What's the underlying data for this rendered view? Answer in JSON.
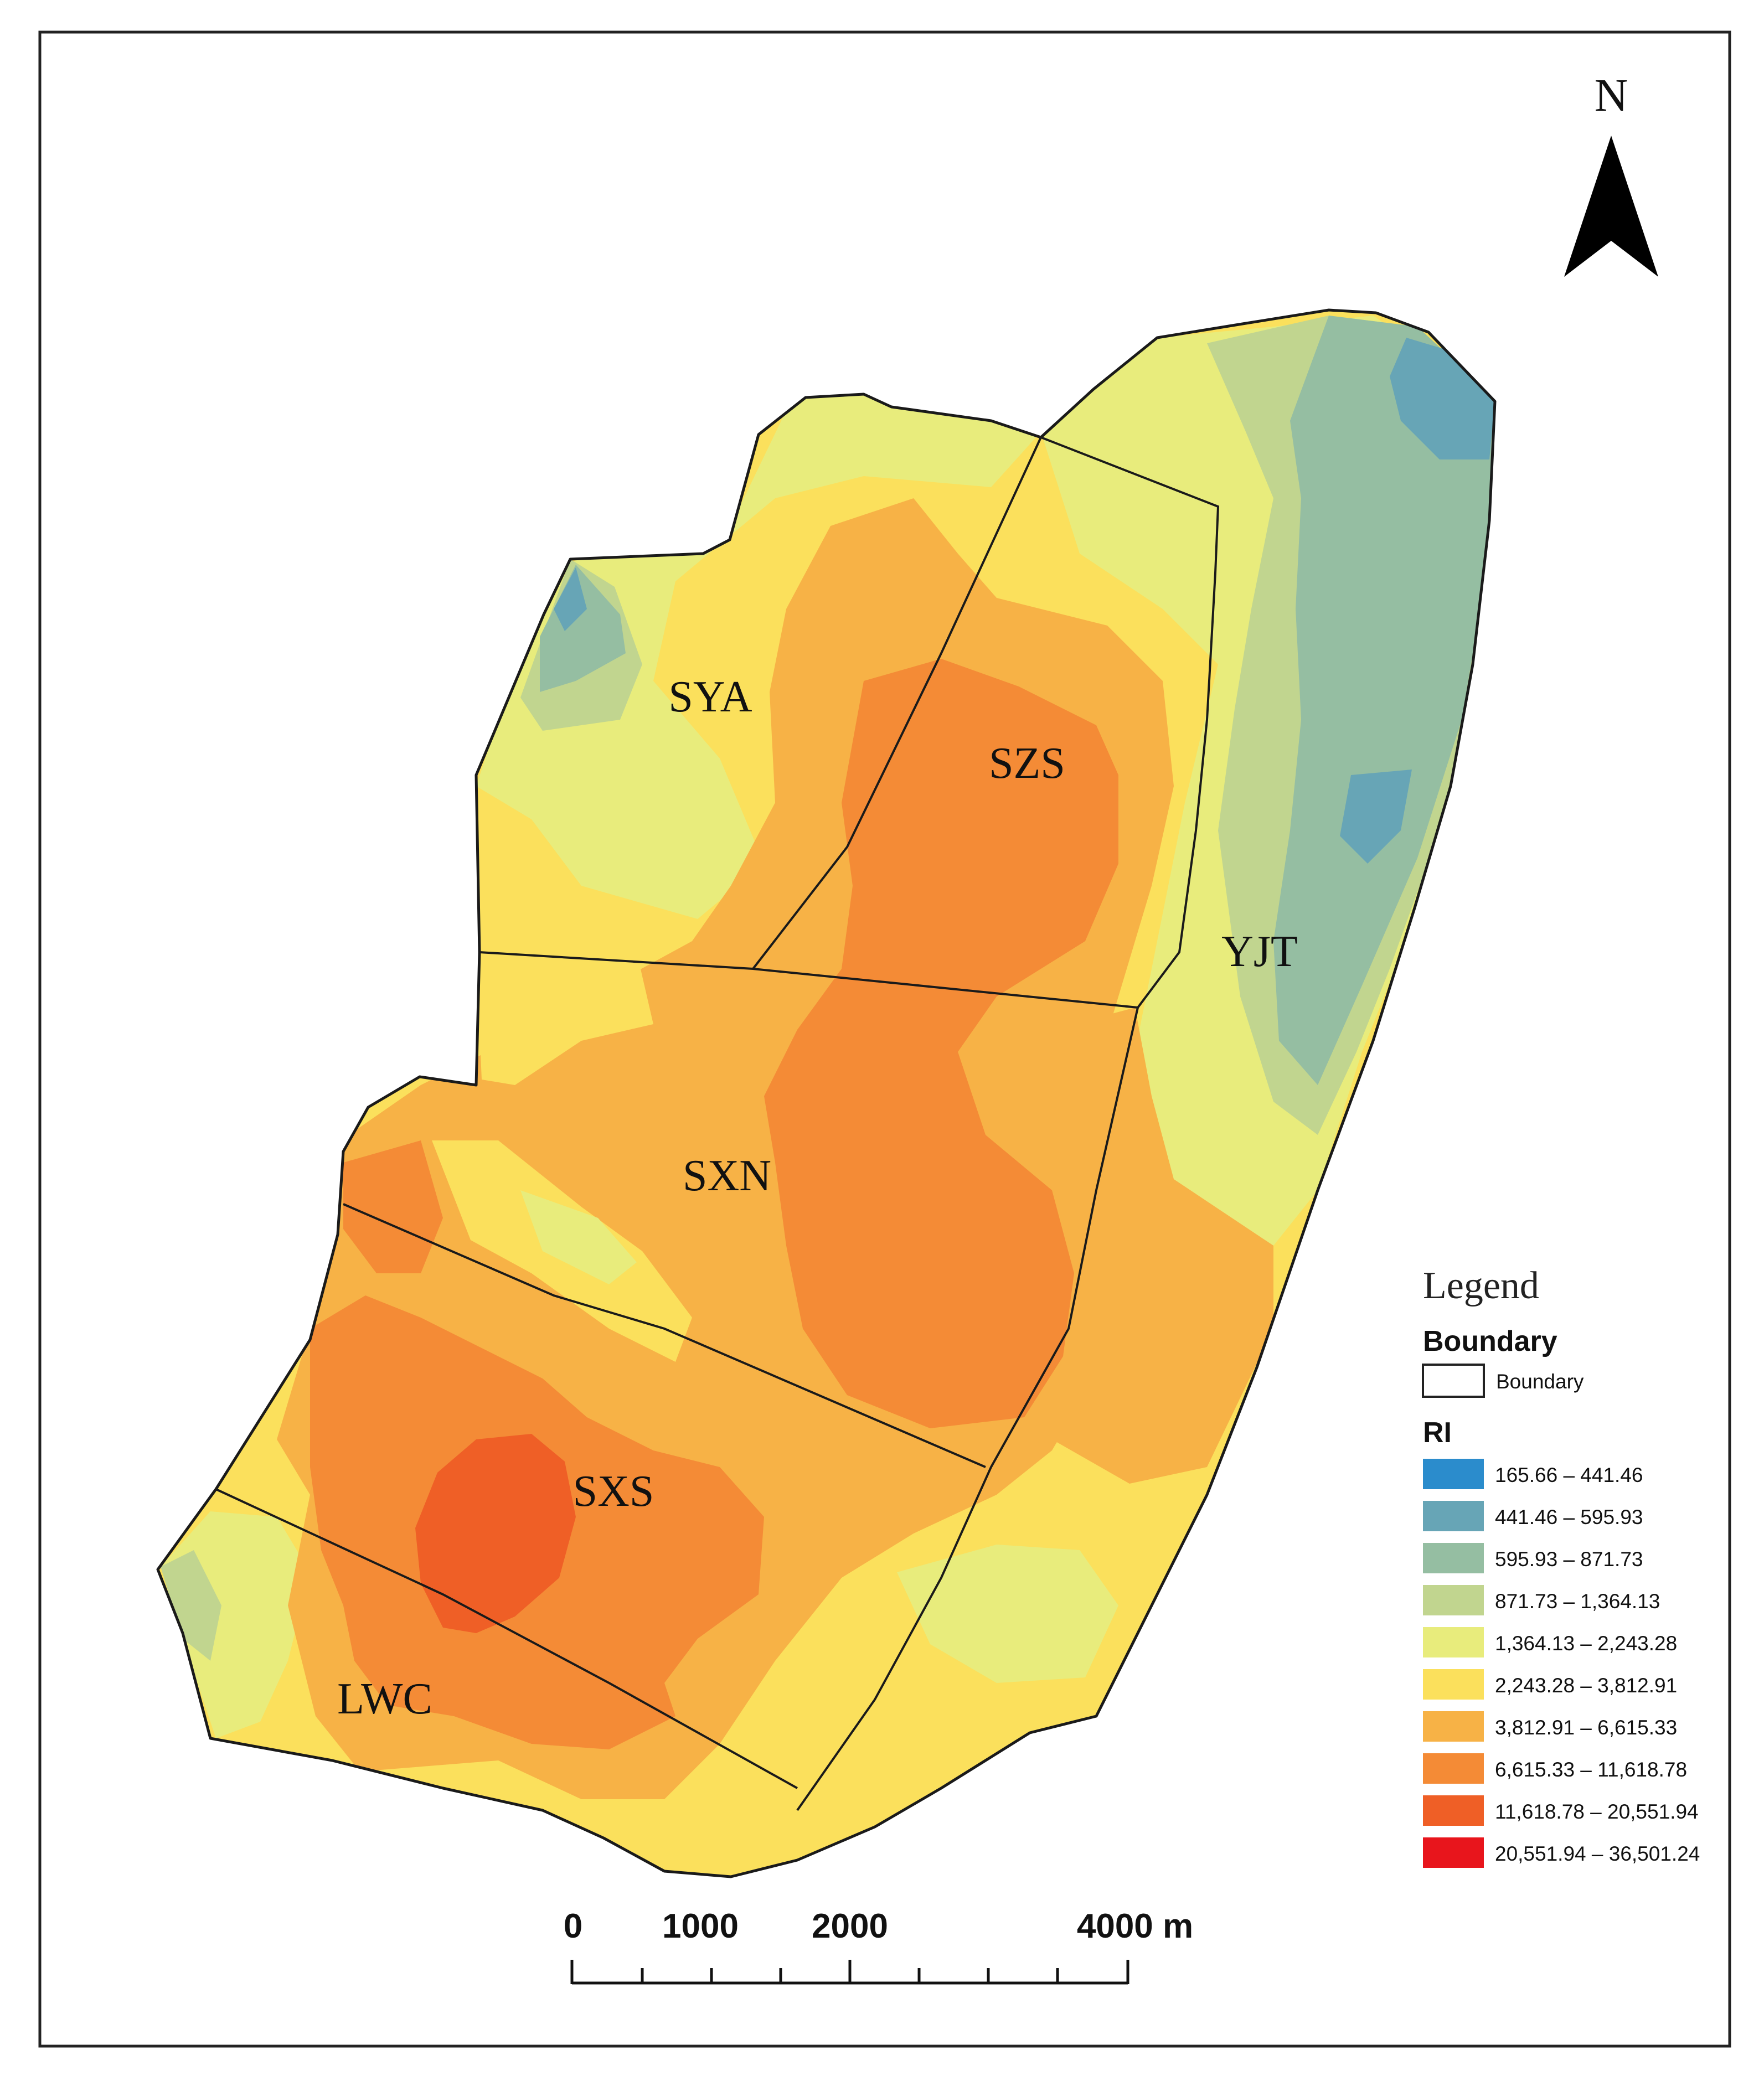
{
  "north_label": "N",
  "zones": [
    {
      "id": "sya",
      "label": "SYA"
    },
    {
      "id": "szs",
      "label": "SZS"
    },
    {
      "id": "yjt",
      "label": "YJT"
    },
    {
      "id": "sxn",
      "label": "SXN"
    },
    {
      "id": "sxs",
      "label": "SXS"
    },
    {
      "id": "lwc",
      "label": "LWC"
    }
  ],
  "legend": {
    "title": "Legend",
    "boundary_heading": "Boundary",
    "boundary_item": "Boundary",
    "ri_heading": "RI",
    "classes": [
      {
        "label": "165.66 – 441.46",
        "color": "#2b8ccc"
      },
      {
        "label": "441.46 – 595.93",
        "color": "#67a5b6"
      },
      {
        "label": "595.93 – 871.73",
        "color": "#95bea2"
      },
      {
        "label": "871.73 – 1,364.13",
        "color": "#c1d58f"
      },
      {
        "label": "1,364.13 – 2,243.28",
        "color": "#e8ec7c"
      },
      {
        "label": "2,243.28 – 3,812.91",
        "color": "#fbe05c"
      },
      {
        "label": "3,812.91 – 6,615.33",
        "color": "#f7b246"
      },
      {
        "label": "6,615.33 – 11,618.78",
        "color": "#f48b36"
      },
      {
        "label": "11,618.78 – 20,551.94",
        "color": "#ef5f26"
      },
      {
        "label": "20,551.94 – 36,501.24",
        "color": "#e8151c"
      }
    ]
  },
  "scale_bar": {
    "labels": [
      "0",
      "1000",
      "2000",
      "4000 m"
    ]
  }
}
